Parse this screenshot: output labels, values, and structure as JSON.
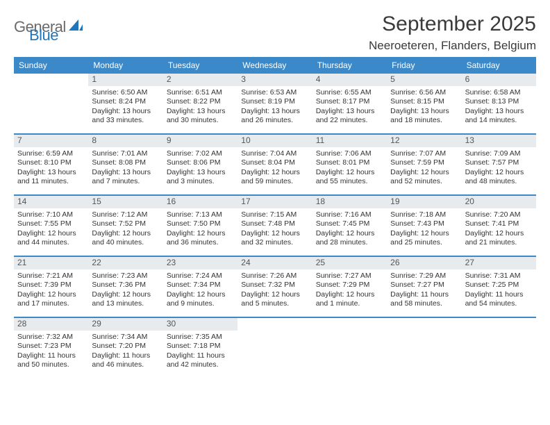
{
  "brand": {
    "word1": "General",
    "word2": "Blue"
  },
  "title": "September 2025",
  "location": "Neeroeteren, Flanders, Belgium",
  "colors": {
    "header_bg": "#3b89c9",
    "header_text": "#ffffff",
    "daynum_bg": "#e7ebee",
    "daynum_text": "#555555",
    "week_divider": "#3b89c9",
    "body_text": "#333333",
    "brand_gray": "#6a6a6a",
    "brand_blue": "#2176b9"
  },
  "typography": {
    "title_fontsize": 30,
    "location_fontsize": 17,
    "dow_fontsize": 12,
    "daynum_fontsize": 12,
    "body_fontsize": 10.5
  },
  "dow": [
    "Sunday",
    "Monday",
    "Tuesday",
    "Wednesday",
    "Thursday",
    "Friday",
    "Saturday"
  ],
  "weeks": [
    [
      {
        "n": "",
        "sunrise": "",
        "sunset": "",
        "daylight": ""
      },
      {
        "n": "1",
        "sunrise": "Sunrise: 6:50 AM",
        "sunset": "Sunset: 8:24 PM",
        "daylight": "Daylight: 13 hours and 33 minutes."
      },
      {
        "n": "2",
        "sunrise": "Sunrise: 6:51 AM",
        "sunset": "Sunset: 8:22 PM",
        "daylight": "Daylight: 13 hours and 30 minutes."
      },
      {
        "n": "3",
        "sunrise": "Sunrise: 6:53 AM",
        "sunset": "Sunset: 8:19 PM",
        "daylight": "Daylight: 13 hours and 26 minutes."
      },
      {
        "n": "4",
        "sunrise": "Sunrise: 6:55 AM",
        "sunset": "Sunset: 8:17 PM",
        "daylight": "Daylight: 13 hours and 22 minutes."
      },
      {
        "n": "5",
        "sunrise": "Sunrise: 6:56 AM",
        "sunset": "Sunset: 8:15 PM",
        "daylight": "Daylight: 13 hours and 18 minutes."
      },
      {
        "n": "6",
        "sunrise": "Sunrise: 6:58 AM",
        "sunset": "Sunset: 8:13 PM",
        "daylight": "Daylight: 13 hours and 14 minutes."
      }
    ],
    [
      {
        "n": "7",
        "sunrise": "Sunrise: 6:59 AM",
        "sunset": "Sunset: 8:10 PM",
        "daylight": "Daylight: 13 hours and 11 minutes."
      },
      {
        "n": "8",
        "sunrise": "Sunrise: 7:01 AM",
        "sunset": "Sunset: 8:08 PM",
        "daylight": "Daylight: 13 hours and 7 minutes."
      },
      {
        "n": "9",
        "sunrise": "Sunrise: 7:02 AM",
        "sunset": "Sunset: 8:06 PM",
        "daylight": "Daylight: 13 hours and 3 minutes."
      },
      {
        "n": "10",
        "sunrise": "Sunrise: 7:04 AM",
        "sunset": "Sunset: 8:04 PM",
        "daylight": "Daylight: 12 hours and 59 minutes."
      },
      {
        "n": "11",
        "sunrise": "Sunrise: 7:06 AM",
        "sunset": "Sunset: 8:01 PM",
        "daylight": "Daylight: 12 hours and 55 minutes."
      },
      {
        "n": "12",
        "sunrise": "Sunrise: 7:07 AM",
        "sunset": "Sunset: 7:59 PM",
        "daylight": "Daylight: 12 hours and 52 minutes."
      },
      {
        "n": "13",
        "sunrise": "Sunrise: 7:09 AM",
        "sunset": "Sunset: 7:57 PM",
        "daylight": "Daylight: 12 hours and 48 minutes."
      }
    ],
    [
      {
        "n": "14",
        "sunrise": "Sunrise: 7:10 AM",
        "sunset": "Sunset: 7:55 PM",
        "daylight": "Daylight: 12 hours and 44 minutes."
      },
      {
        "n": "15",
        "sunrise": "Sunrise: 7:12 AM",
        "sunset": "Sunset: 7:52 PM",
        "daylight": "Daylight: 12 hours and 40 minutes."
      },
      {
        "n": "16",
        "sunrise": "Sunrise: 7:13 AM",
        "sunset": "Sunset: 7:50 PM",
        "daylight": "Daylight: 12 hours and 36 minutes."
      },
      {
        "n": "17",
        "sunrise": "Sunrise: 7:15 AM",
        "sunset": "Sunset: 7:48 PM",
        "daylight": "Daylight: 12 hours and 32 minutes."
      },
      {
        "n": "18",
        "sunrise": "Sunrise: 7:16 AM",
        "sunset": "Sunset: 7:45 PM",
        "daylight": "Daylight: 12 hours and 28 minutes."
      },
      {
        "n": "19",
        "sunrise": "Sunrise: 7:18 AM",
        "sunset": "Sunset: 7:43 PM",
        "daylight": "Daylight: 12 hours and 25 minutes."
      },
      {
        "n": "20",
        "sunrise": "Sunrise: 7:20 AM",
        "sunset": "Sunset: 7:41 PM",
        "daylight": "Daylight: 12 hours and 21 minutes."
      }
    ],
    [
      {
        "n": "21",
        "sunrise": "Sunrise: 7:21 AM",
        "sunset": "Sunset: 7:39 PM",
        "daylight": "Daylight: 12 hours and 17 minutes."
      },
      {
        "n": "22",
        "sunrise": "Sunrise: 7:23 AM",
        "sunset": "Sunset: 7:36 PM",
        "daylight": "Daylight: 12 hours and 13 minutes."
      },
      {
        "n": "23",
        "sunrise": "Sunrise: 7:24 AM",
        "sunset": "Sunset: 7:34 PM",
        "daylight": "Daylight: 12 hours and 9 minutes."
      },
      {
        "n": "24",
        "sunrise": "Sunrise: 7:26 AM",
        "sunset": "Sunset: 7:32 PM",
        "daylight": "Daylight: 12 hours and 5 minutes."
      },
      {
        "n": "25",
        "sunrise": "Sunrise: 7:27 AM",
        "sunset": "Sunset: 7:29 PM",
        "daylight": "Daylight: 12 hours and 1 minute."
      },
      {
        "n": "26",
        "sunrise": "Sunrise: 7:29 AM",
        "sunset": "Sunset: 7:27 PM",
        "daylight": "Daylight: 11 hours and 58 minutes."
      },
      {
        "n": "27",
        "sunrise": "Sunrise: 7:31 AM",
        "sunset": "Sunset: 7:25 PM",
        "daylight": "Daylight: 11 hours and 54 minutes."
      }
    ],
    [
      {
        "n": "28",
        "sunrise": "Sunrise: 7:32 AM",
        "sunset": "Sunset: 7:23 PM",
        "daylight": "Daylight: 11 hours and 50 minutes."
      },
      {
        "n": "29",
        "sunrise": "Sunrise: 7:34 AM",
        "sunset": "Sunset: 7:20 PM",
        "daylight": "Daylight: 11 hours and 46 minutes."
      },
      {
        "n": "30",
        "sunrise": "Sunrise: 7:35 AM",
        "sunset": "Sunset: 7:18 PM",
        "daylight": "Daylight: 11 hours and 42 minutes."
      },
      {
        "n": "",
        "sunrise": "",
        "sunset": "",
        "daylight": ""
      },
      {
        "n": "",
        "sunrise": "",
        "sunset": "",
        "daylight": ""
      },
      {
        "n": "",
        "sunrise": "",
        "sunset": "",
        "daylight": ""
      },
      {
        "n": "",
        "sunrise": "",
        "sunset": "",
        "daylight": ""
      }
    ]
  ]
}
